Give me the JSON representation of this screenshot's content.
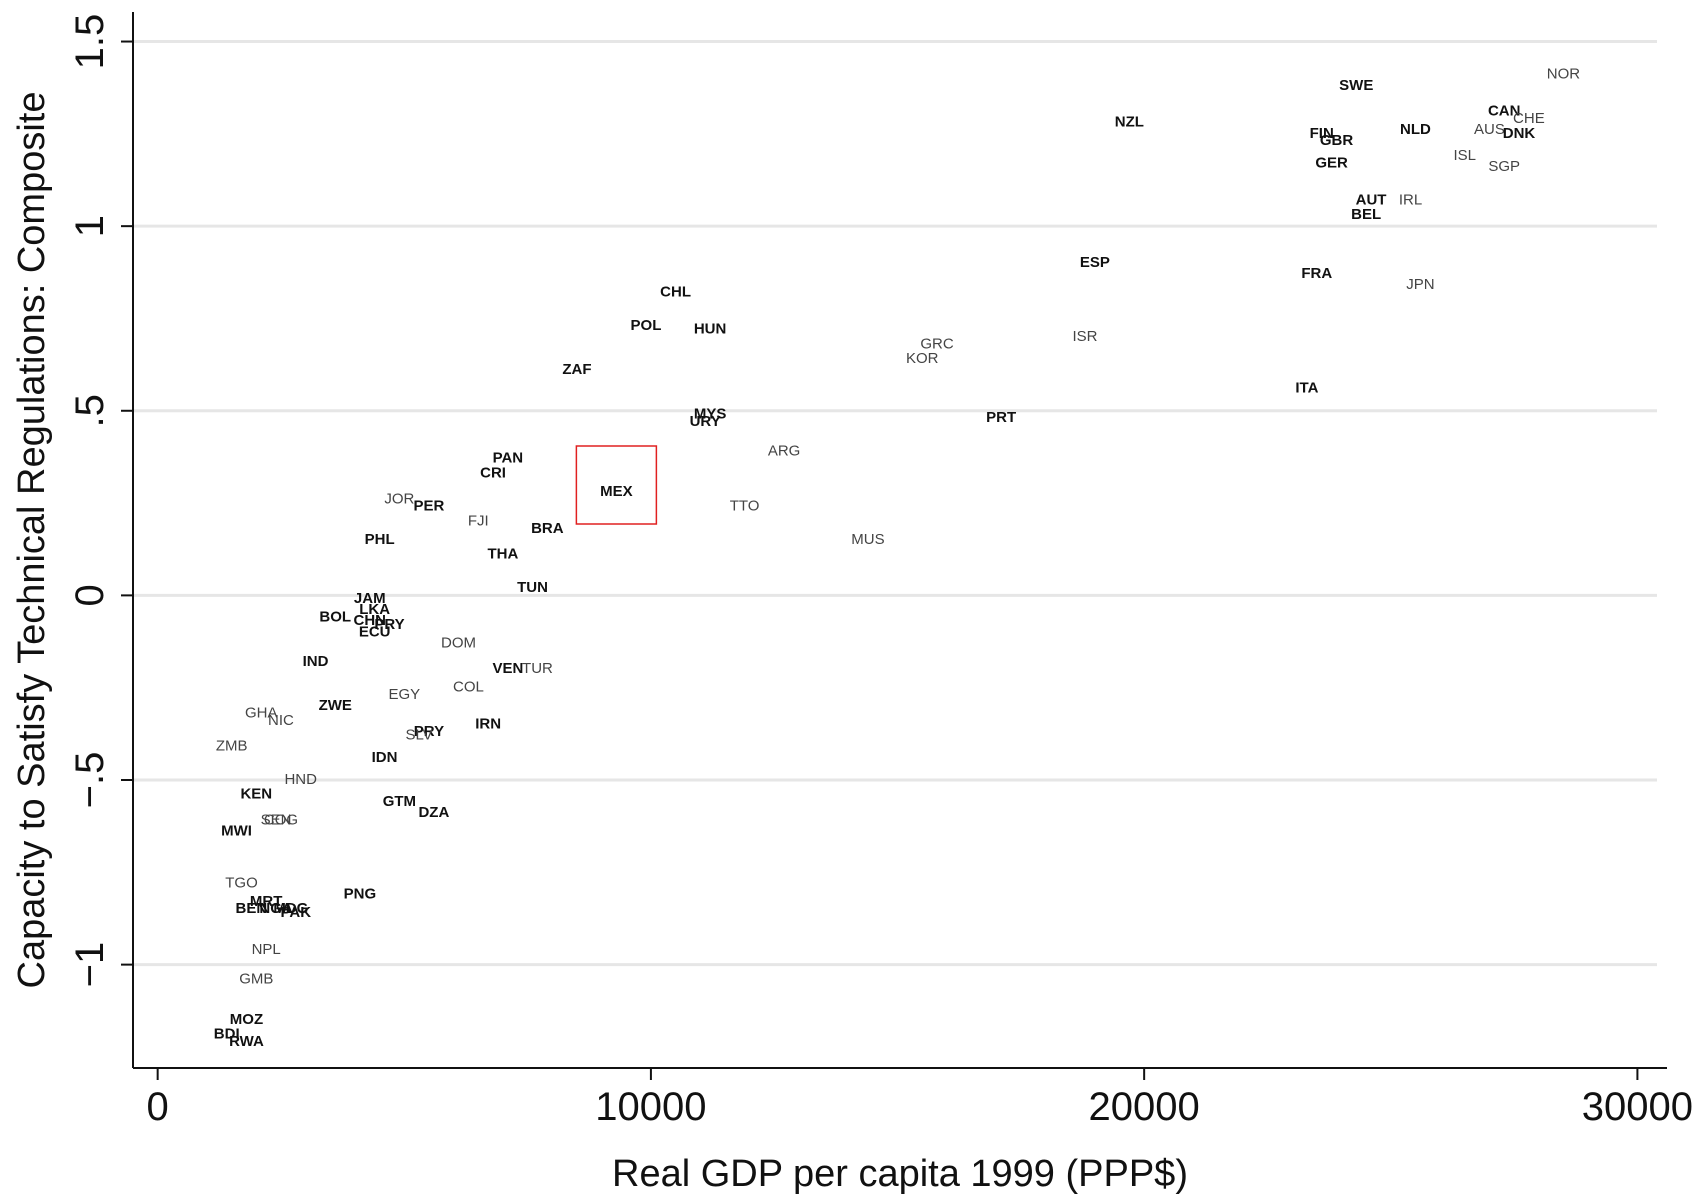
{
  "chart_data": {
    "type": "scatter",
    "xlabel": "Real GDP per capita 1999 (PPP$)",
    "ylabel": "Capacity to Satisfy Technical Regulations: Composite",
    "xlim": [
      -500,
      30600
    ],
    "ylim": [
      -1.28,
      1.58
    ],
    "x_ticks": [
      0,
      10000,
      20000,
      30000
    ],
    "x_tick_labels": [
      "0",
      "10000",
      "20000",
      "30000"
    ],
    "y_ticks": [
      -1,
      -0.5,
      0,
      0.5,
      1,
      1.5
    ],
    "y_tick_labels": [
      "−1",
      "−.5",
      "0",
      ".5",
      "1",
      "1.5"
    ],
    "grid": "horizontal",
    "legend": "none",
    "highlight": "MEX",
    "highlight_color": "#e02020",
    "grid_color": "#e6e6e6",
    "points": [
      {
        "label": "NOR",
        "x": 28500,
        "y": 1.41,
        "style": "light"
      },
      {
        "label": "SWE",
        "x": 24300,
        "y": 1.38,
        "style": "bold"
      },
      {
        "label": "CAN",
        "x": 27300,
        "y": 1.31,
        "style": "bold"
      },
      {
        "label": "CHE",
        "x": 27800,
        "y": 1.29,
        "style": "light"
      },
      {
        "label": "NZL",
        "x": 19700,
        "y": 1.28,
        "style": "bold"
      },
      {
        "label": "AUS",
        "x": 27000,
        "y": 1.26,
        "style": "light"
      },
      {
        "label": "DNK",
        "x": 27600,
        "y": 1.25,
        "style": "bold"
      },
      {
        "label": "NLD",
        "x": 25500,
        "y": 1.26,
        "style": "bold"
      },
      {
        "label": "FIN",
        "x": 23600,
        "y": 1.25,
        "style": "bold"
      },
      {
        "label": "GBR",
        "x": 23900,
        "y": 1.23,
        "style": "bold"
      },
      {
        "label": "ISL",
        "x": 26500,
        "y": 1.19,
        "style": "light"
      },
      {
        "label": "SGP",
        "x": 27300,
        "y": 1.16,
        "style": "light"
      },
      {
        "label": "GER",
        "x": 23800,
        "y": 1.17,
        "style": "bold"
      },
      {
        "label": "AUT",
        "x": 24600,
        "y": 1.07,
        "style": "bold"
      },
      {
        "label": "IRL",
        "x": 25400,
        "y": 1.07,
        "style": "light"
      },
      {
        "label": "BEL",
        "x": 24500,
        "y": 1.03,
        "style": "bold"
      },
      {
        "label": "ESP",
        "x": 19000,
        "y": 0.9,
        "style": "bold"
      },
      {
        "label": "FRA",
        "x": 23500,
        "y": 0.87,
        "style": "bold"
      },
      {
        "label": "JPN",
        "x": 25600,
        "y": 0.84,
        "style": "light"
      },
      {
        "label": "CHL",
        "x": 10500,
        "y": 0.82,
        "style": "bold"
      },
      {
        "label": "POL",
        "x": 9900,
        "y": 0.73,
        "style": "bold"
      },
      {
        "label": "HUN",
        "x": 11200,
        "y": 0.72,
        "style": "bold"
      },
      {
        "label": "ISR",
        "x": 18800,
        "y": 0.7,
        "style": "light"
      },
      {
        "label": "GRC",
        "x": 15800,
        "y": 0.68,
        "style": "light"
      },
      {
        "label": "KOR",
        "x": 15500,
        "y": 0.64,
        "style": "light"
      },
      {
        "label": "ZAF",
        "x": 8500,
        "y": 0.61,
        "style": "bold"
      },
      {
        "label": "ITA",
        "x": 23300,
        "y": 0.56,
        "style": "bold"
      },
      {
        "label": "MYS",
        "x": 11200,
        "y": 0.49,
        "style": "bold"
      },
      {
        "label": "URY",
        "x": 11100,
        "y": 0.47,
        "style": "bold"
      },
      {
        "label": "PRT",
        "x": 17100,
        "y": 0.48,
        "style": "bold"
      },
      {
        "label": "ARG",
        "x": 12700,
        "y": 0.39,
        "style": "light"
      },
      {
        "label": "PAN",
        "x": 7100,
        "y": 0.37,
        "style": "bold"
      },
      {
        "label": "CRI",
        "x": 6800,
        "y": 0.33,
        "style": "bold"
      },
      {
        "label": "MEX",
        "x": 9300,
        "y": 0.28,
        "style": "bold"
      },
      {
        "label": "JOR",
        "x": 4900,
        "y": 0.26,
        "style": "light"
      },
      {
        "label": "PER",
        "x": 5500,
        "y": 0.24,
        "style": "bold"
      },
      {
        "label": "TTO",
        "x": 11900,
        "y": 0.24,
        "style": "light"
      },
      {
        "label": "FJI",
        "x": 6500,
        "y": 0.2,
        "style": "light"
      },
      {
        "label": "BRA",
        "x": 7900,
        "y": 0.18,
        "style": "bold"
      },
      {
        "label": "MUS",
        "x": 14400,
        "y": 0.15,
        "style": "light"
      },
      {
        "label": "PHL",
        "x": 4500,
        "y": 0.15,
        "style": "bold"
      },
      {
        "label": "THA",
        "x": 7000,
        "y": 0.11,
        "style": "bold"
      },
      {
        "label": "TUN",
        "x": 7600,
        "y": 0.02,
        "style": "bold"
      },
      {
        "label": "JAM",
        "x": 4300,
        "y": -0.01,
        "style": "bold"
      },
      {
        "label": "LKA",
        "x": 4400,
        "y": -0.04,
        "style": "bold"
      },
      {
        "label": "BOL",
        "x": 3600,
        "y": -0.06,
        "style": "bold"
      },
      {
        "label": "CHN",
        "x": 4300,
        "y": -0.07,
        "style": "bold"
      },
      {
        "label": "PRY",
        "x": 4700,
        "y": -0.08,
        "style": "bold"
      },
      {
        "label": "ECU",
        "x": 4400,
        "y": -0.1,
        "style": "bold"
      },
      {
        "label": "DOM",
        "x": 6100,
        "y": -0.13,
        "style": "light"
      },
      {
        "label": "IND",
        "x": 3200,
        "y": -0.18,
        "style": "bold"
      },
      {
        "label": "VEN",
        "x": 7100,
        "y": -0.2,
        "style": "bold"
      },
      {
        "label": "TUR",
        "x": 7700,
        "y": -0.2,
        "style": "light"
      },
      {
        "label": "COL",
        "x": 6300,
        "y": -0.25,
        "style": "light"
      },
      {
        "label": "EGY",
        "x": 5000,
        "y": -0.27,
        "style": "light"
      },
      {
        "label": "ZWE",
        "x": 3600,
        "y": -0.3,
        "style": "bold"
      },
      {
        "label": "GHA",
        "x": 2100,
        "y": -0.32,
        "style": "light"
      },
      {
        "label": "NIC",
        "x": 2500,
        "y": -0.34,
        "style": "light"
      },
      {
        "label": "IRN",
        "x": 6700,
        "y": -0.35,
        "style": "bold"
      },
      {
        "label": "PRY",
        "x": 5500,
        "y": -0.37,
        "style": "bold"
      },
      {
        "label": "SLV",
        "x": 5300,
        "y": -0.38,
        "style": "light"
      },
      {
        "label": "ZMB",
        "x": 1500,
        "y": -0.41,
        "style": "light"
      },
      {
        "label": "IDN",
        "x": 4600,
        "y": -0.44,
        "style": "bold"
      },
      {
        "label": "HND",
        "x": 2900,
        "y": -0.5,
        "style": "light"
      },
      {
        "label": "KEN",
        "x": 2000,
        "y": -0.54,
        "style": "bold"
      },
      {
        "label": "GTM",
        "x": 4900,
        "y": -0.56,
        "style": "bold"
      },
      {
        "label": "DZA",
        "x": 5600,
        "y": -0.59,
        "style": "bold"
      },
      {
        "label": "SEN",
        "x": 2400,
        "y": -0.61,
        "style": "light"
      },
      {
        "label": "COG",
        "x": 2500,
        "y": -0.61,
        "style": "light"
      },
      {
        "label": "MWI",
        "x": 1600,
        "y": -0.64,
        "style": "bold"
      },
      {
        "label": "TGO",
        "x": 1700,
        "y": -0.78,
        "style": "light"
      },
      {
        "label": "PNG",
        "x": 4100,
        "y": -0.81,
        "style": "bold"
      },
      {
        "label": "MRT",
        "x": 2200,
        "y": -0.83,
        "style": "bold"
      },
      {
        "label": "BEN",
        "x": 1900,
        "y": -0.85,
        "style": "bold"
      },
      {
        "label": "NGA",
        "x": 2400,
        "y": -0.85,
        "style": "bold"
      },
      {
        "label": "MDG",
        "x": 2700,
        "y": -0.85,
        "style": "bold"
      },
      {
        "label": "PAK",
        "x": 2800,
        "y": -0.86,
        "style": "bold"
      },
      {
        "label": "NPL",
        "x": 2200,
        "y": -0.96,
        "style": "light"
      },
      {
        "label": "GMB",
        "x": 2000,
        "y": -1.04,
        "style": "light"
      },
      {
        "label": "MOZ",
        "x": 1800,
        "y": -1.15,
        "style": "bold"
      },
      {
        "label": "BDI",
        "x": 1400,
        "y": -1.19,
        "style": "bold"
      },
      {
        "label": "RWA",
        "x": 1800,
        "y": -1.21,
        "style": "bold"
      }
    ]
  }
}
